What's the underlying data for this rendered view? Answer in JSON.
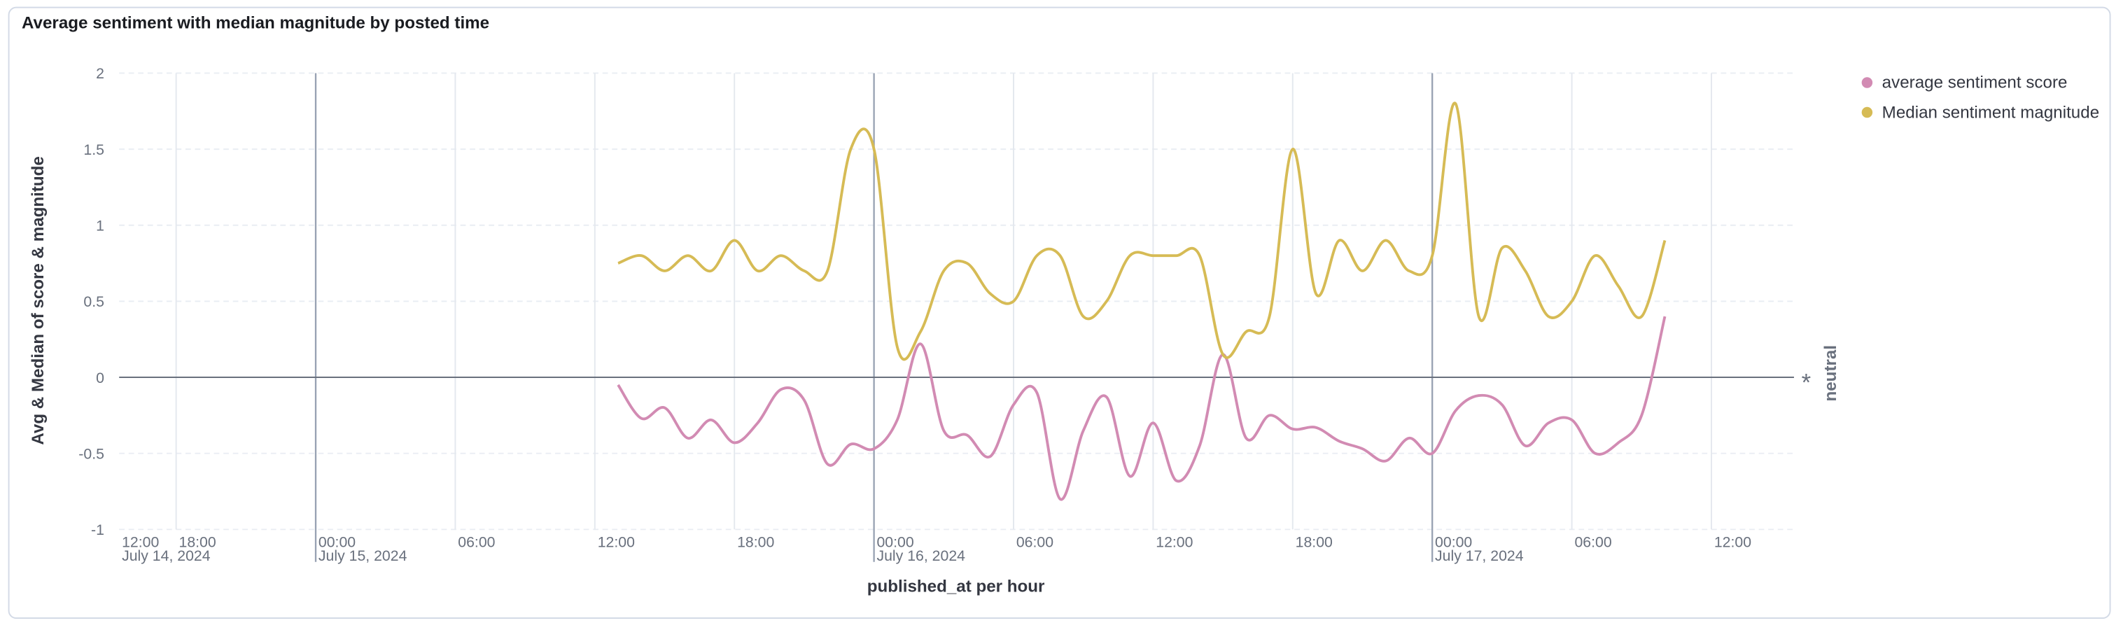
{
  "chart_data": {
    "type": "line",
    "title": "Average sentiment with median magnitude by posted time",
    "xlabel": "published_at per hour",
    "ylabel": "Avg & Median of score & magnitude",
    "x": [
      "2024-07-15T13:00",
      "2024-07-15T14:00",
      "2024-07-15T15:00",
      "2024-07-15T16:00",
      "2024-07-15T17:00",
      "2024-07-15T18:00",
      "2024-07-15T19:00",
      "2024-07-15T20:00",
      "2024-07-15T21:00",
      "2024-07-15T22:00",
      "2024-07-15T23:00",
      "2024-07-16T00:00",
      "2024-07-16T01:00",
      "2024-07-16T02:00",
      "2024-07-16T03:00",
      "2024-07-16T04:00",
      "2024-07-16T05:00",
      "2024-07-16T06:00",
      "2024-07-16T07:00",
      "2024-07-16T08:00",
      "2024-07-16T09:00",
      "2024-07-16T10:00",
      "2024-07-16T11:00",
      "2024-07-16T12:00",
      "2024-07-16T13:00",
      "2024-07-16T14:00",
      "2024-07-16T15:00",
      "2024-07-16T16:00",
      "2024-07-16T17:00",
      "2024-07-16T18:00",
      "2024-07-16T19:00",
      "2024-07-16T20:00",
      "2024-07-16T21:00",
      "2024-07-16T22:00",
      "2024-07-16T23:00",
      "2024-07-17T00:00",
      "2024-07-17T01:00",
      "2024-07-17T02:00",
      "2024-07-17T03:00",
      "2024-07-17T04:00",
      "2024-07-17T05:00",
      "2024-07-17T06:00",
      "2024-07-17T07:00",
      "2024-07-17T08:00",
      "2024-07-17T09:00",
      "2024-07-17T10:00"
    ],
    "series": [
      {
        "name": "average sentiment score",
        "color": "#d28bb3",
        "values": [
          -0.05,
          -0.27,
          -0.2,
          -0.4,
          -0.28,
          -0.43,
          -0.3,
          -0.08,
          -0.15,
          -0.57,
          -0.44,
          -0.47,
          -0.28,
          0.22,
          -0.35,
          -0.38,
          -0.52,
          -0.18,
          -0.1,
          -0.8,
          -0.35,
          -0.13,
          -0.65,
          -0.3,
          -0.68,
          -0.45,
          0.15,
          -0.4,
          -0.25,
          -0.34,
          -0.33,
          -0.42,
          -0.47,
          -0.55,
          -0.4,
          -0.5,
          -0.22,
          -0.12,
          -0.18,
          -0.45,
          -0.3,
          -0.28,
          -0.5,
          -0.43,
          -0.25,
          0.4
        ]
      },
      {
        "name": "Median sentiment magnitude",
        "color": "#d6bb55",
        "values": [
          0.75,
          0.8,
          0.7,
          0.8,
          0.7,
          0.9,
          0.7,
          0.8,
          0.7,
          0.7,
          1.5,
          1.5,
          0.2,
          0.3,
          0.7,
          0.75,
          0.55,
          0.5,
          0.8,
          0.8,
          0.4,
          0.5,
          0.8,
          0.8,
          0.8,
          0.8,
          0.15,
          0.3,
          0.4,
          1.5,
          0.55,
          0.9,
          0.7,
          0.9,
          0.7,
          0.8,
          1.8,
          0.4,
          0.85,
          0.7,
          0.4,
          0.5,
          0.8,
          0.6,
          0.4,
          0.9
        ]
      }
    ],
    "xlim": [
      "2024-07-14T15:33",
      "2024-07-17T15:33"
    ],
    "xticks": [
      {
        "value": "2024-07-14T12:00",
        "label": "12:00",
        "date_label": "July 14, 2024"
      },
      {
        "value": "2024-07-14T18:00",
        "label": "18:00"
      },
      {
        "value": "2024-07-15T00:00",
        "label": "00:00",
        "date_label": "July 15, 2024"
      },
      {
        "value": "2024-07-15T06:00",
        "label": "06:00"
      },
      {
        "value": "2024-07-15T12:00",
        "label": "12:00"
      },
      {
        "value": "2024-07-15T18:00",
        "label": "18:00"
      },
      {
        "value": "2024-07-16T00:00",
        "label": "00:00",
        "date_label": "July 16, 2024"
      },
      {
        "value": "2024-07-16T06:00",
        "label": "06:00"
      },
      {
        "value": "2024-07-16T12:00",
        "label": "12:00"
      },
      {
        "value": "2024-07-16T18:00",
        "label": "18:00"
      },
      {
        "value": "2024-07-17T00:00",
        "label": "00:00",
        "date_label": "July 17, 2024"
      },
      {
        "value": "2024-07-17T06:00",
        "label": "06:00"
      },
      {
        "value": "2024-07-17T12:00",
        "label": "12:00"
      }
    ],
    "ylim": [
      -1,
      2
    ],
    "yticks": [
      -1,
      -0.5,
      0,
      0.5,
      1,
      1.5,
      2
    ],
    "grid": true,
    "legend": "top-right",
    "reference_line": {
      "value": 0,
      "label": "neutral",
      "marker": "*"
    }
  }
}
